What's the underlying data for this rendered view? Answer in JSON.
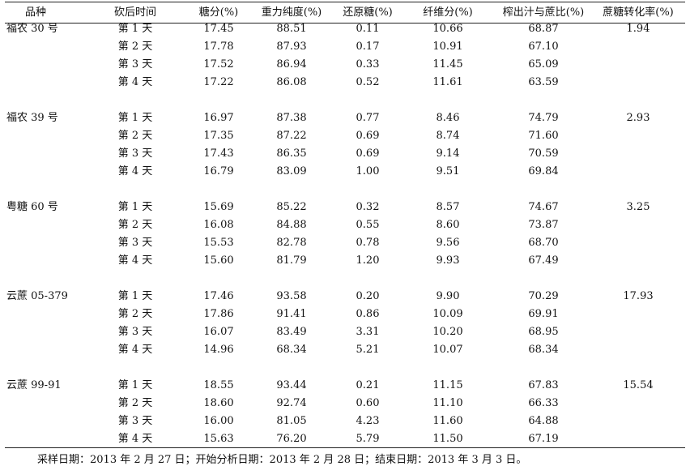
{
  "headers": [
    "品种",
    "砍后时间",
    "糖分(%)",
    "重力纯度(%)",
    "还原糖(%)",
    "纤维分(%)",
    "榨出汁与蔗比(%)",
    "蔗糖转化率(%)"
  ],
  "groups": [
    {
      "variety": "福农 30 号",
      "conversion": "1.94",
      "rows": [
        [
          "第 1 天",
          "17.45",
          "88.51",
          "0.11",
          "10.66",
          "68.87"
        ],
        [
          "第 2 天",
          "17.78",
          "87.93",
          "0.17",
          "10.91",
          "67.10"
        ],
        [
          "第 3 天",
          "17.52",
          "86.94",
          "0.33",
          "11.45",
          "65.09"
        ],
        [
          "第 4 天",
          "17.22",
          "86.08",
          "0.52",
          "11.61",
          "63.59"
        ]
      ]
    },
    {
      "variety": "福农 39 号",
      "conversion": "2.93",
      "rows": [
        [
          "第 1 天",
          "16.97",
          "87.38",
          "0.77",
          "8.46",
          "74.79"
        ],
        [
          "第 2 天",
          "17.35",
          "87.22",
          "0.69",
          "8.74",
          "71.60"
        ],
        [
          "第 3 天",
          "17.43",
          "86.35",
          "0.69",
          "9.14",
          "70.59"
        ],
        [
          "第 4 天",
          "16.79",
          "83.09",
          "1.00",
          "9.51",
          "69.84"
        ]
      ]
    },
    {
      "variety": "粤糖 60 号",
      "conversion": "3.25",
      "rows": [
        [
          "第 1 天",
          "15.69",
          "85.22",
          "0.32",
          "8.57",
          "74.67"
        ],
        [
          "第 2 天",
          "16.08",
          "84.88",
          "0.55",
          "8.60",
          "73.87"
        ],
        [
          "第 3 天",
          "15.53",
          "82.78",
          "0.78",
          "9.56",
          "68.70"
        ],
        [
          "第 4 天",
          "15.60",
          "81.79",
          "1.20",
          "9.93",
          "67.49"
        ]
      ]
    },
    {
      "variety": "云蔗 05-379",
      "conversion": "17.93",
      "rows": [
        [
          "第 1 天",
          "17.46",
          "93.58",
          "0.20",
          "9.90",
          "70.29"
        ],
        [
          "第 2 天",
          "17.86",
          "91.41",
          "0.86",
          "10.09",
          "69.91"
        ],
        [
          "第 3 天",
          "16.07",
          "83.49",
          "3.31",
          "10.20",
          "68.95"
        ],
        [
          "第 4 天",
          "14.96",
          "68.34",
          "5.21",
          "10.07",
          "68.34"
        ]
      ]
    },
    {
      "variety": "云蔗 99-91",
      "conversion": "15.54",
      "rows": [
        [
          "第 1 天",
          "18.55",
          "93.44",
          "0.21",
          "11.15",
          "67.83"
        ],
        [
          "第 2 天",
          "18.60",
          "92.74",
          "0.60",
          "11.10",
          "66.33"
        ],
        [
          "第 3 天",
          "16.00",
          "81.05",
          "4.23",
          "11.60",
          "64.88"
        ],
        [
          "第 4 天",
          "15.63",
          "76.20",
          "5.79",
          "11.50",
          "67.19"
        ]
      ]
    }
  ],
  "note": "采样日期：2013 年 2 月 27 日；开始分析日期：2013 年 2 月 28 日；结束日期：2013 年 3 月 3 日。"
}
